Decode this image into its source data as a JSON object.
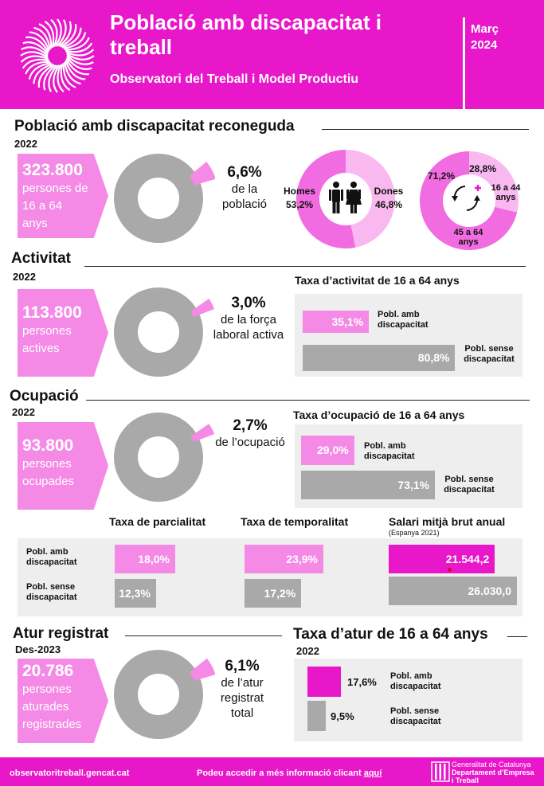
{
  "header": {
    "title": "Població amb discapacitat i treball",
    "subtitle": "Observatori del Treball i Model Productiu",
    "month": "Març",
    "year": "2024"
  },
  "colors": {
    "magenta": "#e817c9",
    "pink": "#f48ae6",
    "light_pink": "#f9b8ef",
    "grey": "#a9a9a9",
    "bg_grey": "#eeeeee"
  },
  "s1": {
    "title": "Població amb discapacitat reconeguda",
    "year": "2022",
    "count": "323.800",
    "count_text": [
      "persones de",
      "16 a 64",
      "anys"
    ],
    "share": {
      "value": 6.6,
      "label": "6,6%",
      "text": [
        "de la",
        "població"
      ]
    },
    "gender": {
      "men_label": "Homes",
      "men_value": 53.2,
      "men_pct": "53,2%",
      "women_label": "Dones",
      "women_value": 46.8,
      "women_pct": "46,8%"
    },
    "age": {
      "young_value": 28.8,
      "young_pct": "28,8%",
      "young_label": [
        "16 a 44",
        "anys"
      ],
      "old_value": 71.2,
      "old_pct": "71,2%",
      "old_label": [
        "45 a 64",
        "anys"
      ]
    }
  },
  "s2": {
    "title": "Activitat",
    "year": "2022",
    "count": "113.800",
    "count_text": [
      "persones",
      "actives"
    ],
    "share": {
      "value": 3.0,
      "label": "3,0%",
      "text": [
        "de la força",
        "laboral activa"
      ]
    },
    "chart": {
      "title": "Taxa d’activitat de 16 a 64 anys",
      "bars": [
        {
          "value": 35.1,
          "label": "35,1%",
          "name": [
            "Pobl. amb",
            "discapacitat"
          ]
        },
        {
          "value": 80.8,
          "label": "80,8%",
          "name": [
            "Pobl. sense",
            "discapacitat"
          ]
        }
      ]
    }
  },
  "s3": {
    "title": "Ocupació",
    "year": "2022",
    "count": "93.800",
    "count_text": [
      "persones",
      "ocupades"
    ],
    "share": {
      "value": 2.7,
      "label": "2,7%",
      "text": [
        "de l’ocupació"
      ]
    },
    "chart": {
      "title": "Taxa d’ocupació de 16 a 64 anys",
      "bars": [
        {
          "value": 29.0,
          "label": "29,0%",
          "name": [
            "Pobl. amb",
            "discapacitat"
          ]
        },
        {
          "value": 73.1,
          "label": "73,1%",
          "name": [
            "Pobl. sense",
            "discapacitat"
          ]
        }
      ]
    }
  },
  "s4": {
    "row_labels": [
      [
        "Pobl. amb",
        "discapacitat"
      ],
      [
        "Pobl. sense",
        "discapacitat"
      ]
    ],
    "parcialitat": {
      "title": "Taxa de parcialitat",
      "with_value": 18.0,
      "with_label": "18,0%",
      "without_value": 12.3,
      "without_label": "12,3%"
    },
    "temporalitat": {
      "title": "Taxa de temporalitat",
      "with_value": 23.9,
      "with_label": "23,9%",
      "without_value": 17.2,
      "without_label": "17,2%"
    },
    "salari": {
      "title": "Salari mitjà brut anual",
      "note": "(Espanya 2021)",
      "with_value": 21544.2,
      "with_label": "21.544,2",
      "without_value": 26030.0,
      "without_label": "26.030,0"
    }
  },
  "s5": {
    "title": "Atur registrat",
    "year": "Des-2023",
    "count": "20.786",
    "count_text": [
      "persones",
      "aturades",
      "registrades"
    ],
    "share": {
      "value": 6.1,
      "label": "6,1%",
      "text": [
        "de l’atur",
        "registrat",
        "total"
      ]
    },
    "chart": {
      "title": "Taxa d’atur de 16 a 64 anys",
      "year": "2022",
      "bars": [
        {
          "value": 17.6,
          "label": "17,6%",
          "name": [
            "Pobl. amb",
            "discapacitat"
          ]
        },
        {
          "value": 9.5,
          "label": "9,5%",
          "name": [
            "Pobl. sense",
            "discapacitat"
          ]
        }
      ]
    }
  },
  "footer": {
    "url": "observatoritreball.gencat.cat",
    "more_text": "Podeu accedir a més informació clicant",
    "more_link": "aquí",
    "org_line1": "Generalitat de Catalunya",
    "org_line2": "Departament d’Empresa",
    "org_line3": "i Treball"
  }
}
